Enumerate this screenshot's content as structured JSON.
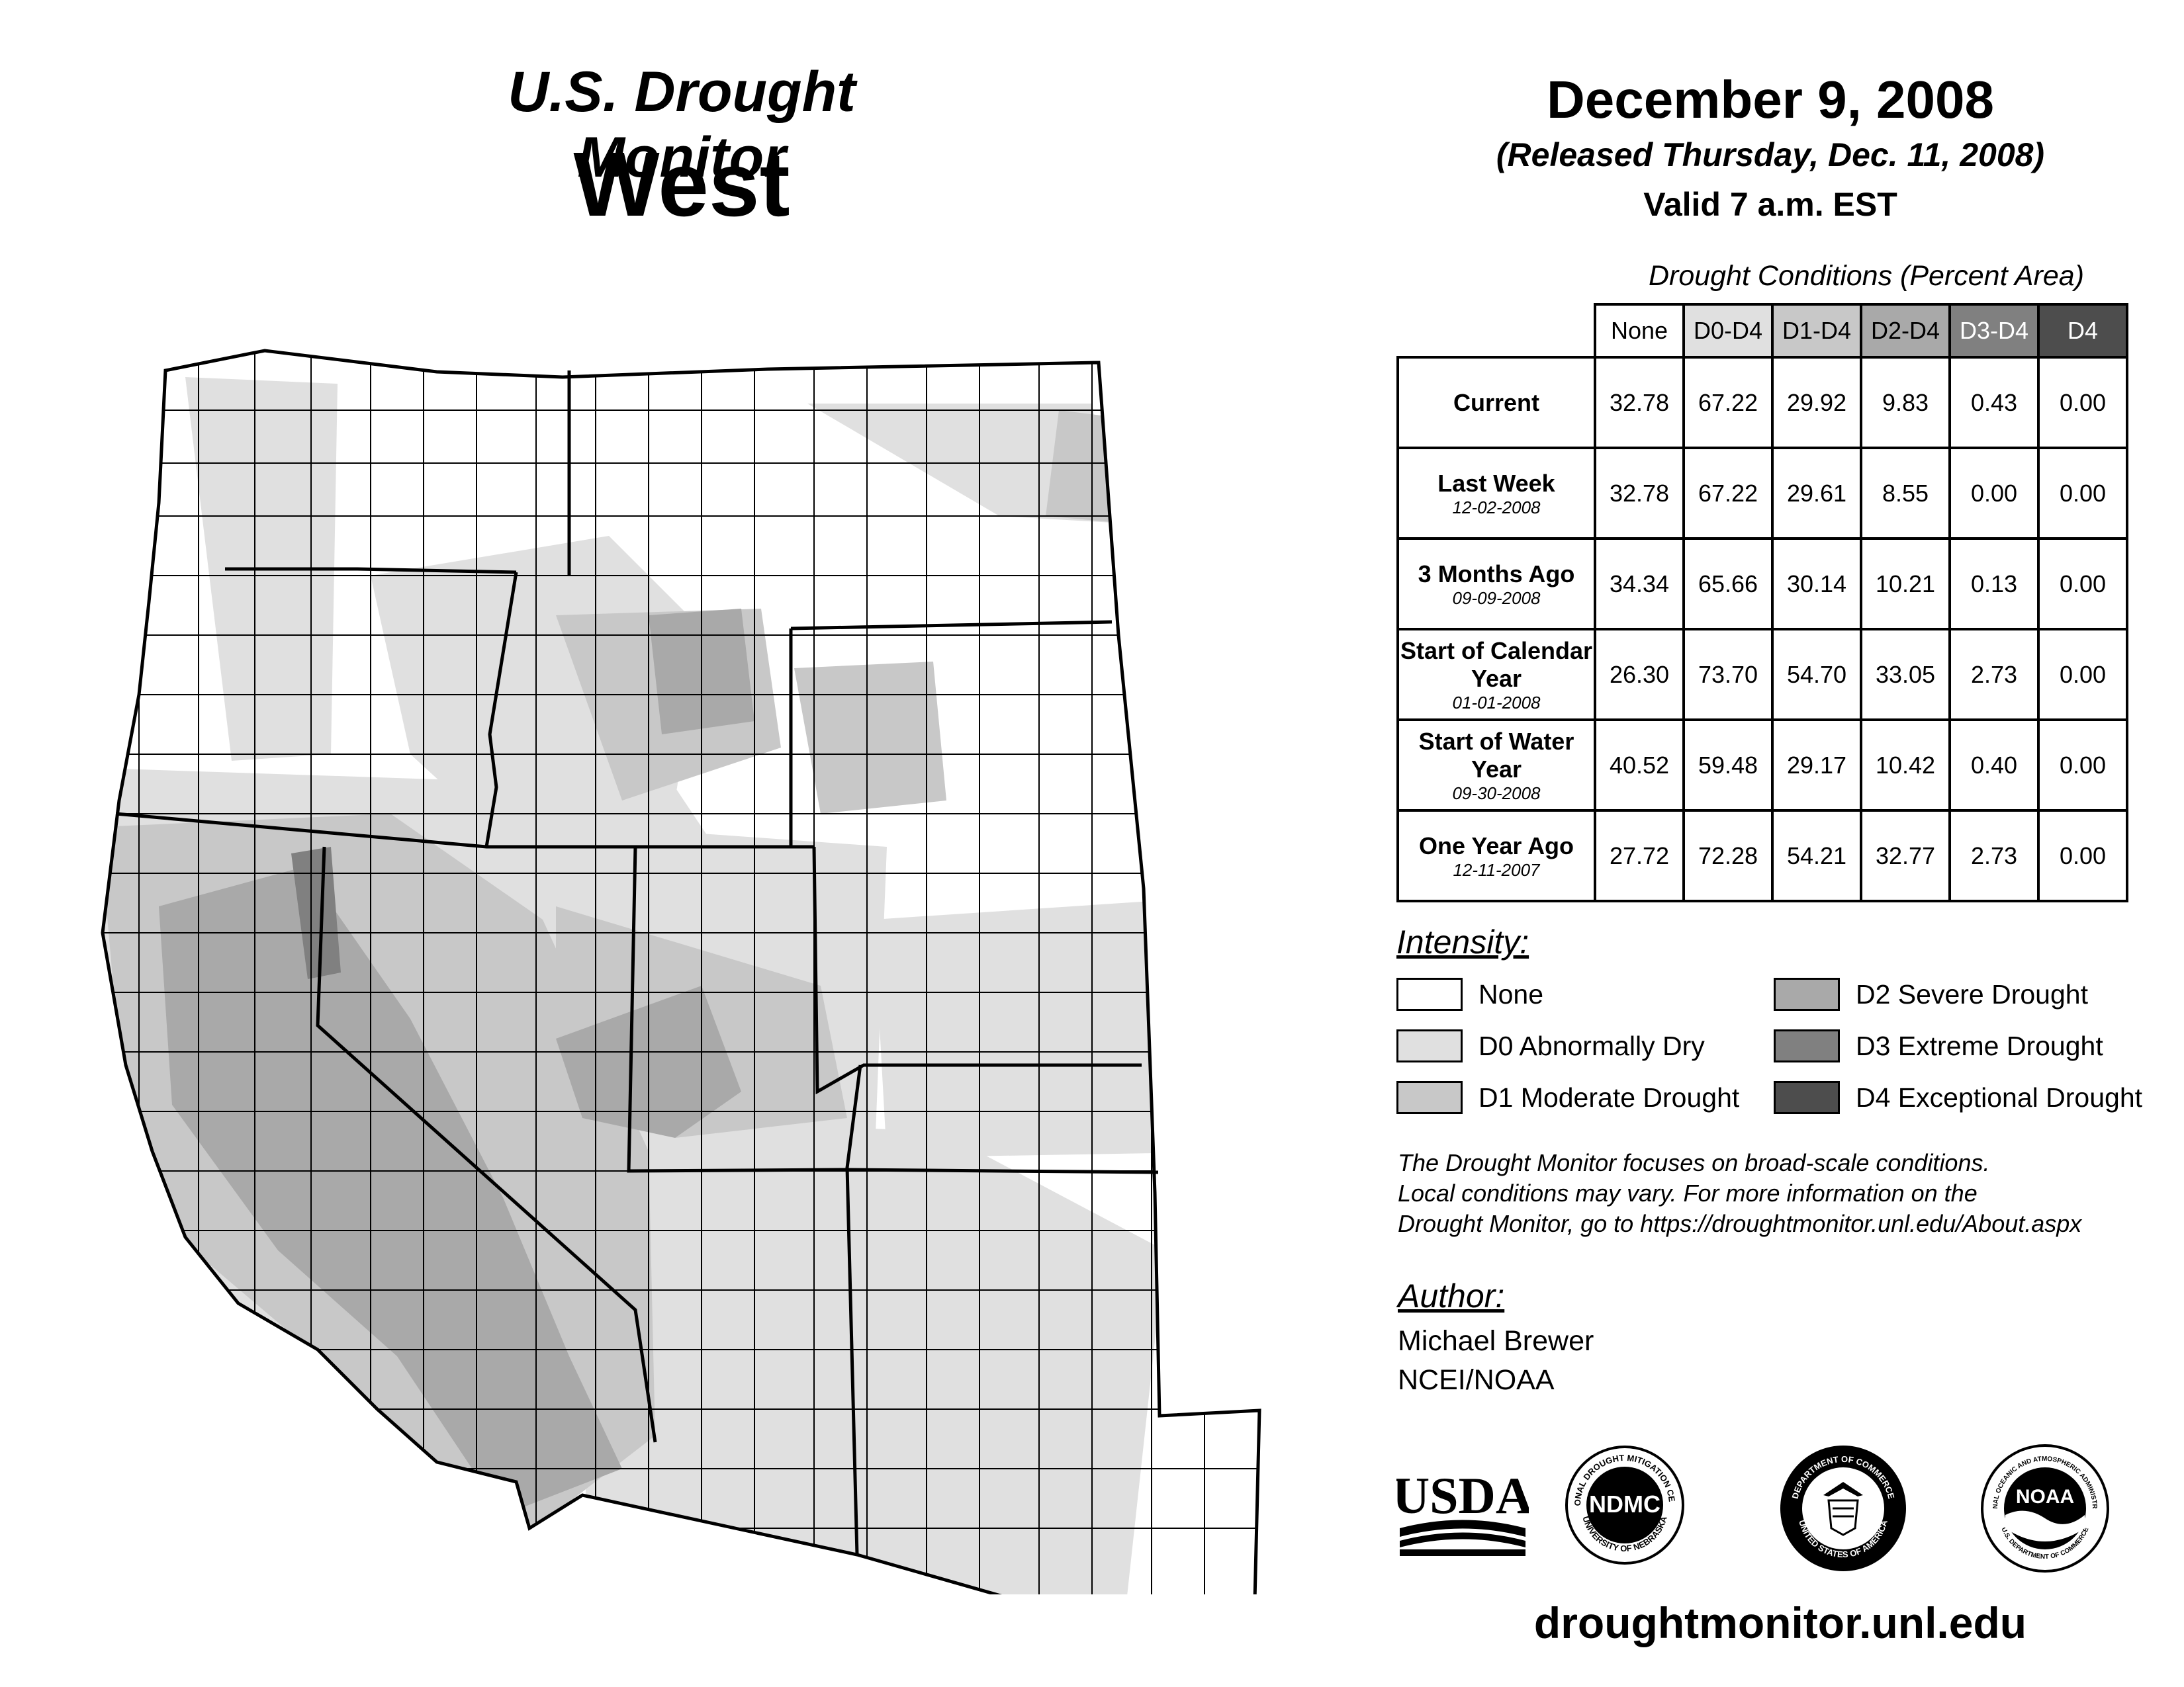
{
  "header": {
    "title": "U.S. Drought Monitor",
    "region": "West",
    "date": "December 9, 2008",
    "released": "(Released Thursday, Dec. 11, 2008)",
    "valid": "Valid 7 a.m. EST"
  },
  "table": {
    "title": "Drought Conditions (Percent Area)",
    "columns": [
      "None",
      "D0-D4",
      "D1-D4",
      "D2-D4",
      "D3-D4",
      "D4"
    ],
    "rows": [
      {
        "label": "Current",
        "sub": "",
        "values": [
          "32.78",
          "67.22",
          "29.92",
          "9.83",
          "0.43",
          "0.00"
        ]
      },
      {
        "label": "Last Week",
        "sub": "12-02-2008",
        "values": [
          "32.78",
          "67.22",
          "29.61",
          "8.55",
          "0.00",
          "0.00"
        ]
      },
      {
        "label": "3 Months Ago",
        "sub": "09-09-2008",
        "values": [
          "34.34",
          "65.66",
          "30.14",
          "10.21",
          "0.13",
          "0.00"
        ]
      },
      {
        "label": "Start of Calendar Year",
        "sub": "01-01-2008",
        "values": [
          "26.30",
          "73.70",
          "54.70",
          "33.05",
          "2.73",
          "0.00"
        ]
      },
      {
        "label": "Start of Water Year",
        "sub": "09-30-2008",
        "values": [
          "40.52",
          "59.48",
          "29.17",
          "10.42",
          "0.40",
          "0.00"
        ]
      },
      {
        "label": "One Year Ago",
        "sub": "12-11-2007",
        "values": [
          "27.72",
          "72.28",
          "54.21",
          "32.77",
          "2.73",
          "0.00"
        ]
      }
    ]
  },
  "legend": {
    "title": "Intensity:",
    "items": [
      {
        "label": "None",
        "color": "#ffffff"
      },
      {
        "label": "D0 Abnormally Dry",
        "color": "#e0e0e0"
      },
      {
        "label": "D1 Moderate Drought",
        "color": "#c8c8c8"
      },
      {
        "label": "D2 Severe Drought",
        "color": "#a9a9a9"
      },
      {
        "label": "D3 Extreme Drought",
        "color": "#808080"
      },
      {
        "label": "D4 Exceptional Drought",
        "color": "#4d4d4d"
      }
    ]
  },
  "note": {
    "line1": "The Drought Monitor focuses on broad-scale conditions.",
    "line2": "Local conditions may vary. For more information on the",
    "line3": "Drought Monitor, go to https://droughtmonitor.unl.edu/About.aspx"
  },
  "author": {
    "title": "Author:",
    "name": "Michael Brewer",
    "org": "NCEI/NOAA"
  },
  "logos": {
    "usda": "USDA",
    "ndmc": "NDMC",
    "ndmc_ring_top": "NATIONAL DROUGHT MITIGATION CENTER",
    "ndmc_ring_bottom": "UNIVERSITY OF NEBRASKA",
    "doc_ring_top": "DEPARTMENT OF COMMERCE",
    "doc_ring_bottom": "UNITED STATES OF AMERICA",
    "noaa": "NOAA",
    "noaa_ring_top": "NATIONAL OCEANIC AND ATMOSPHERIC ADMINISTRATION",
    "noaa_ring_bottom": "U.S. DEPARTMENT OF COMMERCE"
  },
  "website": "droughtmonitor.unl.edu"
}
